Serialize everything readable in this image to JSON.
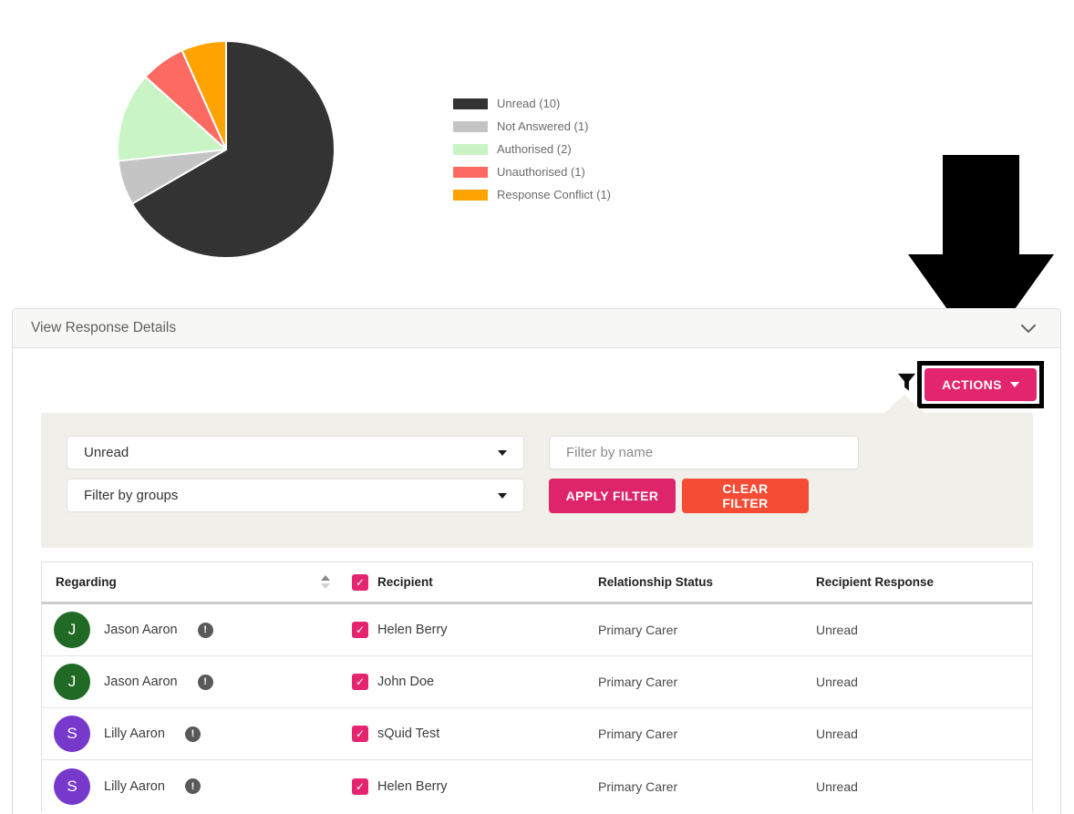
{
  "chart_data": {
    "type": "pie",
    "title": "",
    "direction": "clockwise",
    "start_angle_deg": 0,
    "legend_position": "right",
    "slices": [
      {
        "label": "Unread",
        "value": 10,
        "color": "#333333"
      },
      {
        "label": "Not Answered",
        "value": 1,
        "color": "#c4c4c4"
      },
      {
        "label": "Authorised",
        "value": 2,
        "color": "#c9f4c5"
      },
      {
        "label": "Unauthorised",
        "value": 1,
        "color": "#fc6a62"
      },
      {
        "label": "Response Conflict",
        "value": 1,
        "color": "#ffa302"
      }
    ],
    "legend_labels": [
      "Unread (10)",
      "Not Answered (1)",
      "Authorised (2)",
      "Unauthorised (1)",
      "Response Conflict (1)"
    ]
  },
  "annotation": {
    "arrow_color": "#000000",
    "points_to": "ACTIONS button"
  },
  "panel": {
    "title": "View Response Details"
  },
  "toolbar": {
    "actions_label": "ACTIONS"
  },
  "filter": {
    "status_value": "Unread",
    "groups_value": "Filter by groups",
    "name_placeholder": "Filter by name",
    "apply_label": "APPLY FILTER",
    "clear_label": "CLEAR FILTER"
  },
  "table": {
    "columns": {
      "regarding": "Regarding",
      "recipient": "Recipient",
      "relationship": "Relationship Status",
      "response": "Recipient Response"
    },
    "rows": [
      {
        "initial": "J",
        "avatar_color": "#206a25",
        "regarding": "Jason Aaron",
        "recipient": "Helen Berry",
        "relationship": "Primary Carer",
        "response": "Unread"
      },
      {
        "initial": "J",
        "avatar_color": "#206a25",
        "regarding": "Jason Aaron",
        "recipient": "John Doe",
        "relationship": "Primary Carer",
        "response": "Unread"
      },
      {
        "initial": "S",
        "avatar_color": "#7639cc",
        "regarding": "Lilly Aaron",
        "recipient": "sQuid Test",
        "relationship": "Primary Carer",
        "response": "Unread"
      },
      {
        "initial": "S",
        "avatar_color": "#7639cc",
        "regarding": "Lilly Aaron",
        "recipient": "Helen Berry",
        "relationship": "Primary Carer",
        "response": "Unread"
      }
    ]
  },
  "colors": {
    "accent_pink": "#e2256d",
    "clear_red": "#f44c35",
    "filter_panel_bg": "#f0efea",
    "panel_header_bg": "#f7f7f5"
  }
}
